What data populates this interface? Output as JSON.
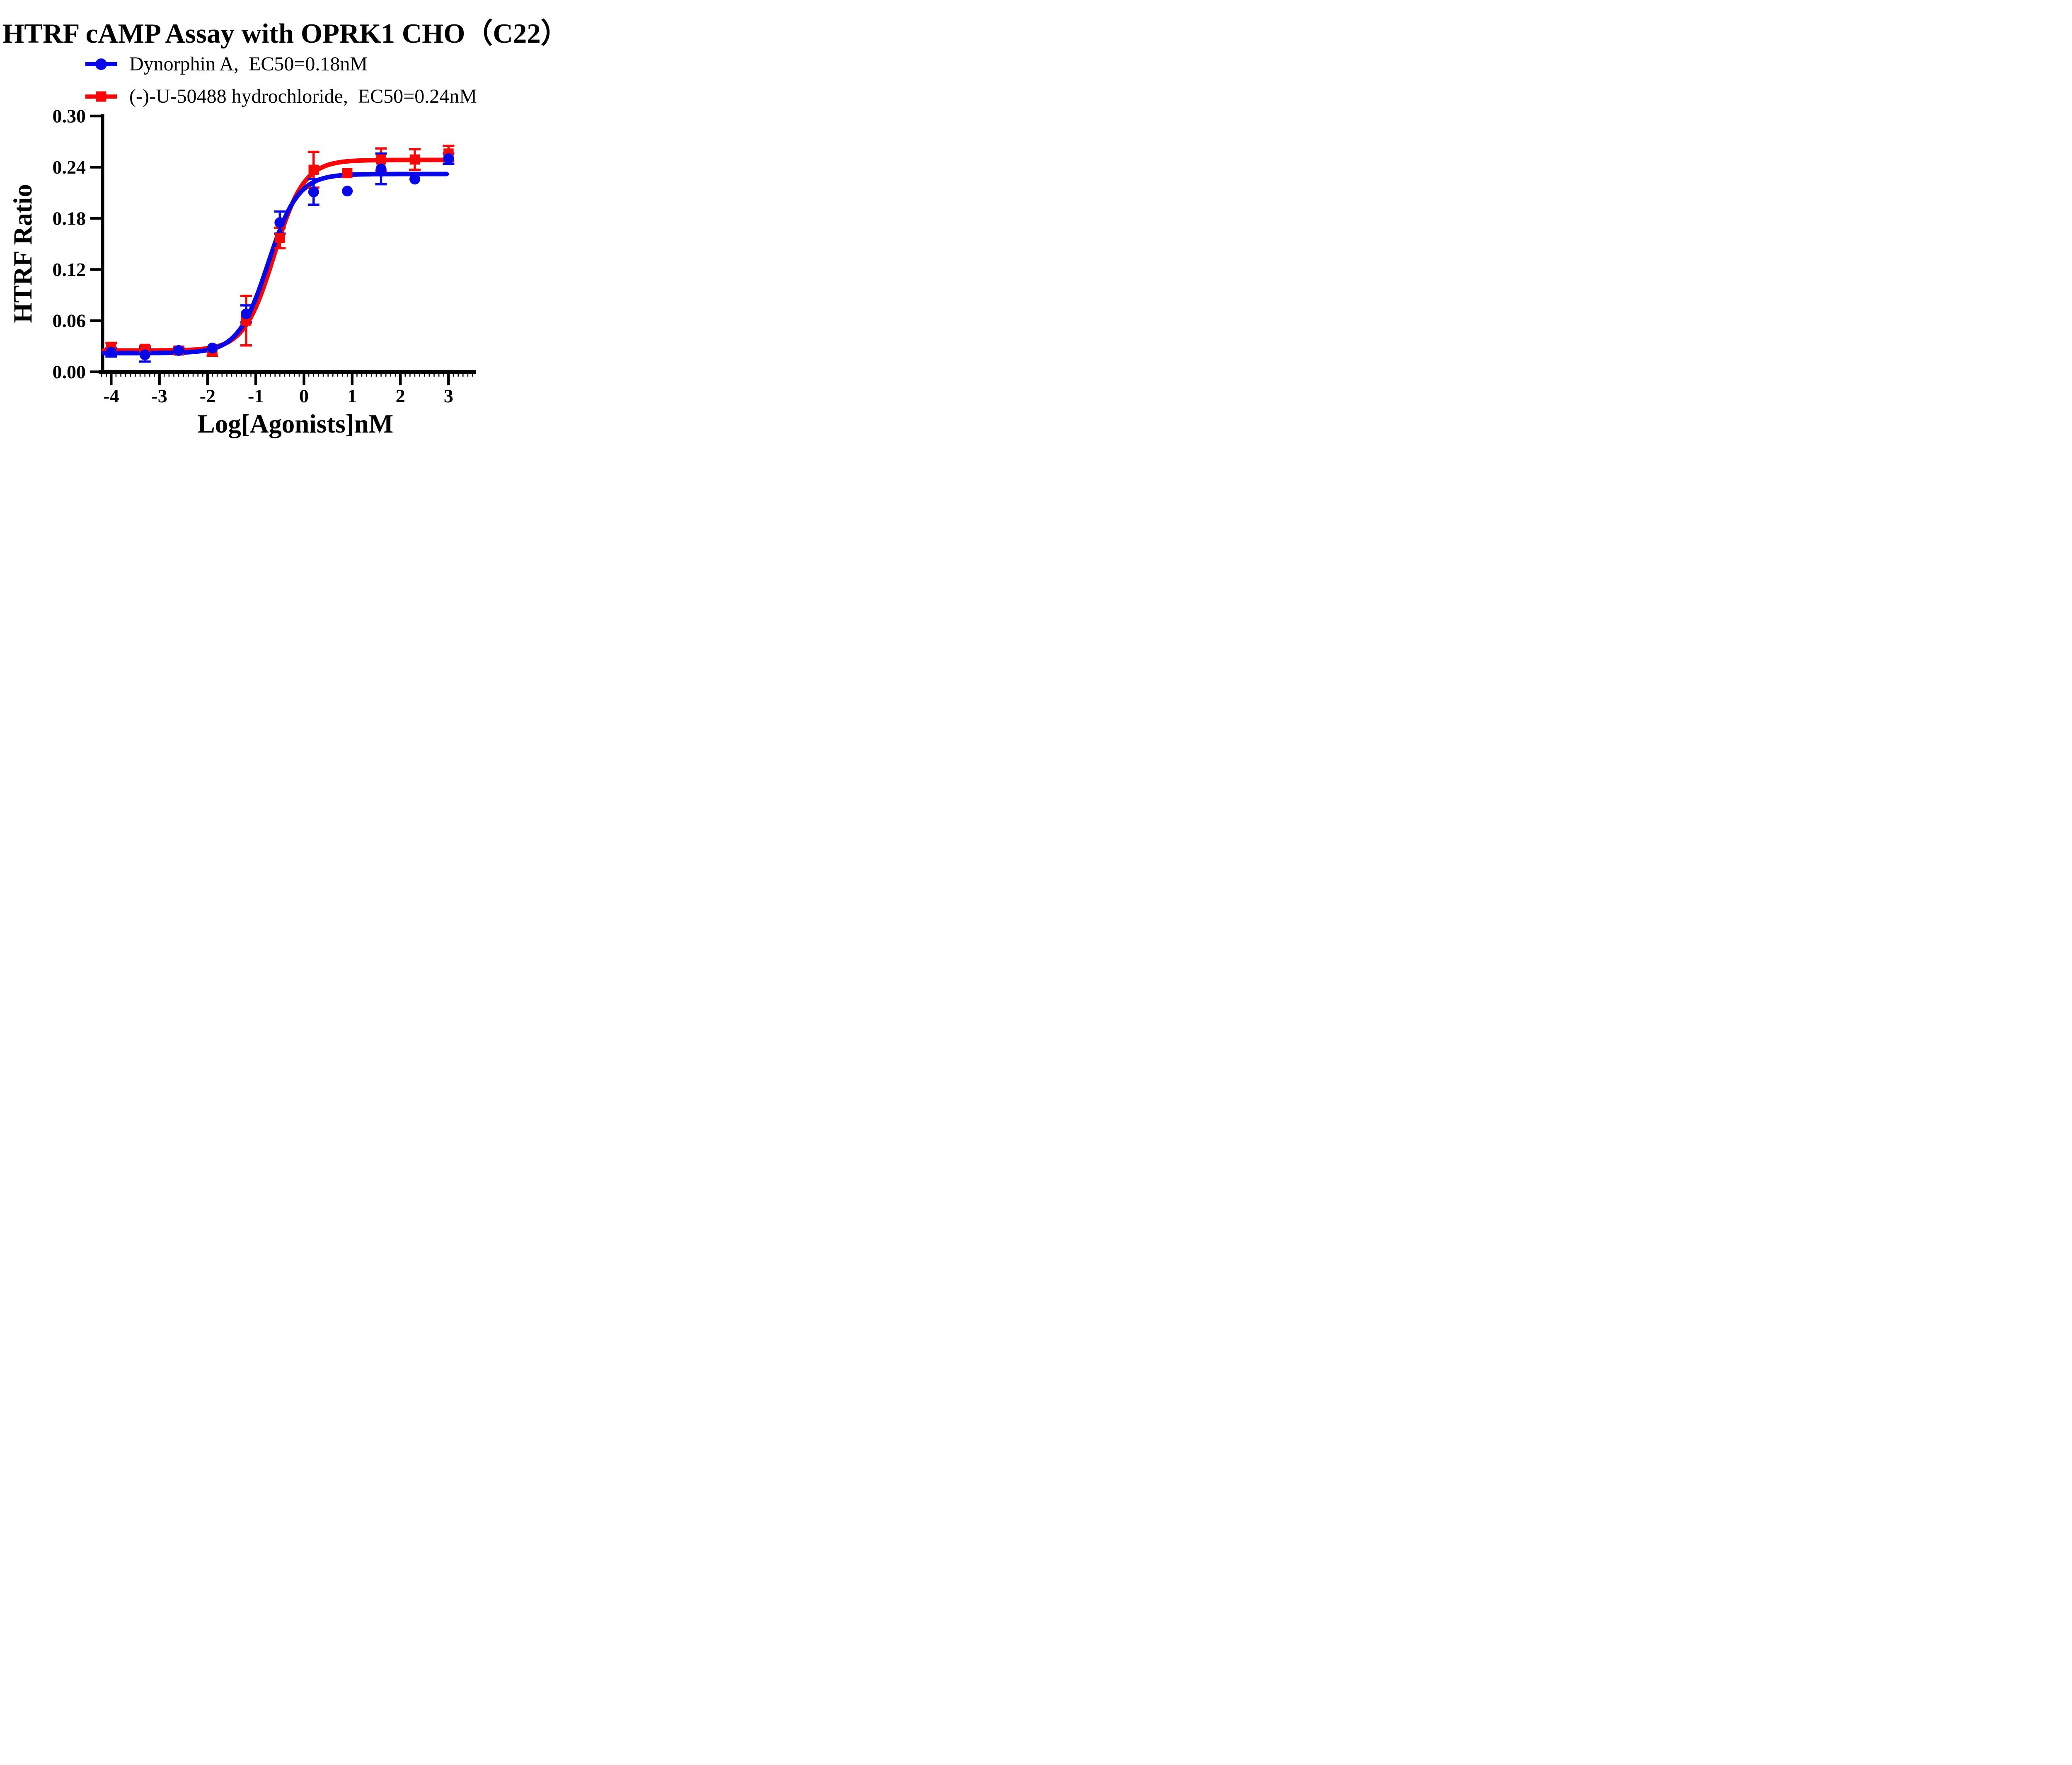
{
  "title": {
    "text": "HTRF cAMP Assay with OPRK1 CHO（C22）"
  },
  "legend": {
    "position": "top-left",
    "items": [
      {
        "label": "Dynorphin A,  EC50=0.18nM",
        "marker": "circle",
        "color": "#0707e8"
      },
      {
        "label": "(-)-U-50488 hydrochloride,  EC50=0.24nM",
        "marker": "square",
        "color": "#f70707"
      }
    ]
  },
  "chart_data": {
    "type": "scatter",
    "title": "HTRF cAMP Assay with OPRK1 CHO（C22）",
    "xlabel": "Log[Agonists]nM",
    "ylabel": "HTRF Ratio",
    "xlim": [
      -4.24,
      3.56
    ],
    "ylim": [
      0,
      0.3
    ],
    "grid": false,
    "legend_position": "top-left",
    "x_ticks": [
      -4,
      -3,
      -2,
      -1,
      0,
      1,
      2,
      3
    ],
    "x_minor_tick_step": 0.1,
    "y_ticks": [
      {
        "v": 0.0,
        "label": "0.00"
      },
      {
        "v": 0.06,
        "label": "0.06"
      },
      {
        "v": 0.12,
        "label": "0.12"
      },
      {
        "v": 0.18,
        "label": "0.18"
      },
      {
        "v": 0.24,
        "label": "0.24"
      },
      {
        "v": 0.3,
        "label": "0.30"
      }
    ],
    "series": [
      {
        "name": "Dynorphin A",
        "ec50_label": "EC50=0.18nM",
        "color": "#0707e8",
        "marker": "circle",
        "x": [
          -4.0,
          -3.3,
          -2.6,
          -1.9,
          -1.2,
          -0.5,
          0.2,
          0.9,
          1.6,
          2.3,
          3.0
        ],
        "y": [
          0.023,
          0.02,
          0.025,
          0.028,
          0.068,
          0.175,
          0.211,
          0.212,
          0.238,
          0.226,
          0.25
        ],
        "err": [
          0.005,
          0.008,
          0.003,
          0,
          0.01,
          0.013,
          0.015,
          0,
          0.018,
          0,
          0.006
        ],
        "fit": {
          "model": "sigmoid",
          "bottom": 0.022,
          "top": 0.232,
          "logEC50": -0.745,
          "hill": 1.4,
          "x_start": -4.16,
          "x_end": 2.96
        }
      },
      {
        "name": "(-)-U-50488 hydrochloride",
        "ec50_label": "EC50=0.24nM",
        "color": "#f70707",
        "marker": "square",
        "x": [
          -4.0,
          -3.3,
          -2.6,
          -1.9,
          -1.2,
          -0.5,
          0.2,
          0.9,
          1.6,
          2.3,
          3.0
        ],
        "y": [
          0.029,
          0.027,
          0.025,
          0.024,
          0.06,
          0.157,
          0.237,
          0.233,
          0.249,
          0.249,
          0.256
        ],
        "err": [
          0.005,
          0.003,
          0.004,
          0.005,
          0.029,
          0.012,
          0.021,
          0,
          0.013,
          0.012,
          0.009
        ],
        "fit": {
          "model": "sigmoid",
          "bottom": 0.025,
          "top": 0.2485,
          "logEC50": -0.62,
          "hill": 1.4,
          "x_start": -4.16,
          "x_end": 2.96
        }
      }
    ]
  }
}
